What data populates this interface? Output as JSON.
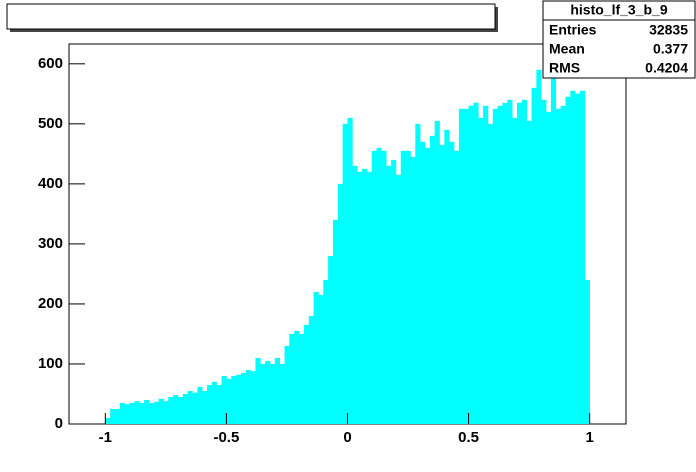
{
  "chart_data": {
    "type": "histogram",
    "bins": [
      -1,
      -0.98,
      -0.96,
      -0.94,
      -0.92,
      -0.9,
      -0.88,
      -0.86,
      -0.84,
      -0.82,
      -0.8,
      -0.78,
      -0.76,
      -0.74,
      -0.72,
      -0.7,
      -0.68,
      -0.66,
      -0.64,
      -0.62,
      -0.6,
      -0.58,
      -0.56,
      -0.54,
      -0.52,
      -0.5,
      -0.48,
      -0.46,
      -0.44,
      -0.42,
      -0.4,
      -0.38,
      -0.36,
      -0.34,
      -0.32,
      -0.3,
      -0.28,
      -0.26,
      -0.24,
      -0.22,
      -0.2,
      -0.18,
      -0.16,
      -0.14,
      -0.12,
      -0.1,
      -0.08,
      -0.06,
      -0.04,
      -0.02,
      0,
      0.02,
      0.04,
      0.06,
      0.08,
      0.1,
      0.12,
      0.14,
      0.16,
      0.18,
      0.2,
      0.22,
      0.24,
      0.26,
      0.28,
      0.3,
      0.32,
      0.34,
      0.36,
      0.38,
      0.4,
      0.42,
      0.44,
      0.46,
      0.48,
      0.5,
      0.52,
      0.54,
      0.56,
      0.58,
      0.6,
      0.62,
      0.64,
      0.66,
      0.68,
      0.7,
      0.72,
      0.74,
      0.76,
      0.78,
      0.8,
      0.82,
      0.84,
      0.86,
      0.88,
      0.9,
      0.92,
      0.94,
      0.96,
      0.98,
      1
    ],
    "values": [
      10,
      25,
      25,
      35,
      33,
      35,
      38,
      35,
      40,
      35,
      37,
      42,
      38,
      45,
      48,
      45,
      50,
      55,
      52,
      62,
      55,
      65,
      70,
      65,
      80,
      75,
      80,
      82,
      85,
      90,
      88,
      110,
      100,
      105,
      100,
      110,
      100,
      130,
      150,
      155,
      150,
      165,
      180,
      220,
      215,
      240,
      280,
      340,
      400,
      500,
      510,
      430,
      420,
      425,
      420,
      455,
      460,
      455,
      430,
      440,
      415,
      455,
      455,
      445,
      500,
      470,
      460,
      480,
      505,
      465,
      490,
      470,
      455,
      525,
      525,
      530,
      535,
      510,
      530,
      500,
      525,
      530,
      535,
      540,
      510,
      535,
      540,
      505,
      560,
      590,
      540,
      520,
      600,
      525,
      530,
      545,
      555,
      550,
      555,
      240
    ],
    "color": "#00ffff",
    "xlim": [
      -1.15,
      1.15
    ],
    "xticks": [
      -1,
      -0.5,
      0,
      0.5,
      1
    ],
    "ylim": [
      0,
      633
    ],
    "yticks": [
      0,
      100,
      200,
      300,
      400,
      500,
      600
    ],
    "stats": {
      "title": "histo_lf_3_b_9",
      "rows": [
        [
          "Entries",
          "32835"
        ],
        [
          "Mean",
          "0.377"
        ],
        [
          "RMS",
          "0.4204"
        ]
      ]
    }
  }
}
